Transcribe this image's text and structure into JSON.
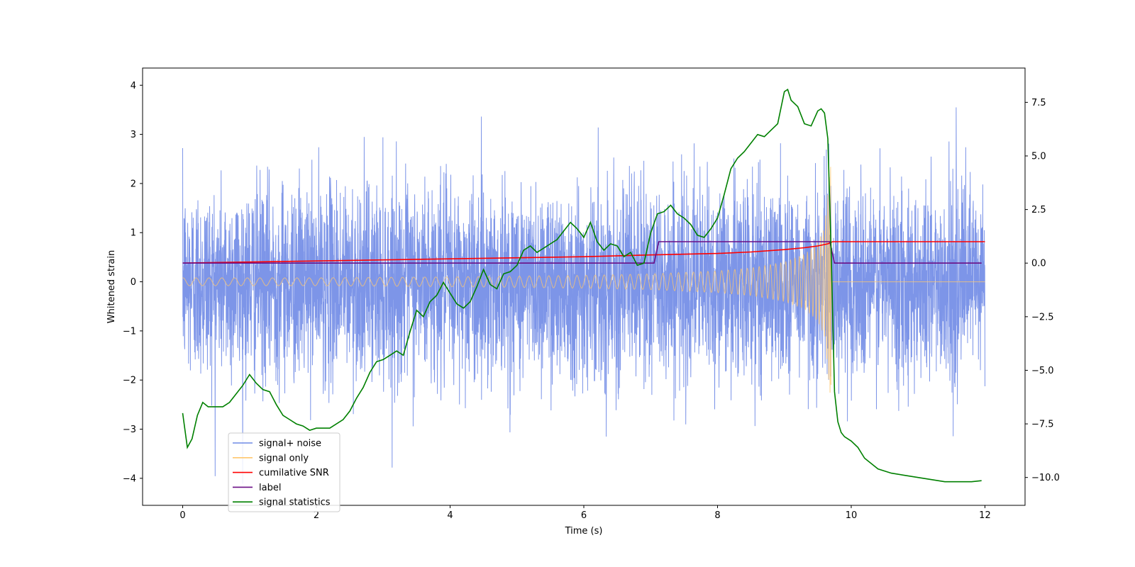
{
  "chart_data": {
    "type": "line",
    "xlabel": "Time (s)",
    "ylabel": "Whitened strain",
    "ylabel_right": "",
    "xlim": [
      -0.6,
      12.6
    ],
    "ylim_left": [
      -4.55,
      4.35
    ],
    "ylim_right": [
      -11.3,
      9.1
    ],
    "x_ticks": [
      0,
      2,
      4,
      6,
      8,
      10,
      12
    ],
    "x_tick_labels": [
      "0",
      "2",
      "4",
      "6",
      "8",
      "10",
      "12"
    ],
    "y_ticks_left": [
      -4,
      -3,
      -2,
      -1,
      0,
      1,
      2,
      3,
      4
    ],
    "y_tick_labels_left": [
      "−4",
      "−3",
      "−2",
      "−1",
      "0",
      "1",
      "2",
      "3",
      "4"
    ],
    "y_ticks_right": [
      -10,
      -7.5,
      -5,
      -2.5,
      0,
      2.5,
      5,
      7.5
    ],
    "y_tick_labels_right": [
      "−10.0",
      "−7.5",
      "−5.0",
      "−2.5",
      "0.0",
      "2.5",
      "5.0",
      "7.5"
    ],
    "legend_position": "lower-left",
    "grid": false,
    "series": [
      {
        "name": "signal+ noise",
        "axis": "left",
        "color": "#6f8ae6",
        "approximate": "dense noise, std ~1.0, range about -4.1 to 3.9, x from 0 to 12"
      },
      {
        "name": "signal only",
        "axis": "left",
        "color": "#ffc76e",
        "envelope": {
          "x": [
            0,
            2,
            4,
            6,
            7,
            8,
            8.5,
            9,
            9.3,
            9.5,
            9.6,
            9.65,
            9.7
          ],
          "amp": [
            0.08,
            0.08,
            0.1,
            0.13,
            0.16,
            0.22,
            0.28,
            0.4,
            0.55,
            0.8,
            1.1,
            1.8,
            2.7
          ]
        },
        "after_merger_value": 0,
        "merger_time": 9.7
      },
      {
        "name": "cumilative SNR",
        "axis": "right",
        "color": "#ff0000",
        "x": [
          0,
          2,
          4,
          6,
          7,
          8,
          8.5,
          9,
          9.3,
          9.5,
          9.65,
          9.72,
          12
        ],
        "y": [
          0.0,
          0.1,
          0.2,
          0.3,
          0.38,
          0.45,
          0.52,
          0.63,
          0.72,
          0.8,
          0.9,
          1.0,
          1.0
        ]
      },
      {
        "name": "label",
        "axis": "right",
        "color": "#6a0f86",
        "x": [
          0,
          7.05,
          7.12,
          9.68,
          9.75,
          11.95
        ],
        "y": [
          0,
          0,
          1,
          1,
          0,
          0
        ]
      },
      {
        "name": "signal statistics",
        "axis": "right",
        "color": "#008000",
        "x": [
          0,
          0.07,
          0.14,
          0.22,
          0.3,
          0.38,
          0.46,
          0.6,
          0.7,
          0.8,
          0.9,
          1.0,
          1.1,
          1.2,
          1.3,
          1.4,
          1.5,
          1.6,
          1.7,
          1.8,
          1.9,
          2.0,
          2.2,
          2.4,
          2.5,
          2.6,
          2.7,
          2.8,
          2.9,
          3.0,
          3.1,
          3.2,
          3.3,
          3.4,
          3.5,
          3.6,
          3.7,
          3.8,
          3.9,
          4.0,
          4.1,
          4.2,
          4.3,
          4.4,
          4.5,
          4.6,
          4.7,
          4.8,
          4.9,
          5.0,
          5.1,
          5.2,
          5.3,
          5.4,
          5.5,
          5.6,
          5.7,
          5.8,
          5.9,
          6.0,
          6.1,
          6.2,
          6.3,
          6.4,
          6.5,
          6.6,
          6.7,
          6.8,
          6.9,
          7.0,
          7.1,
          7.2,
          7.3,
          7.4,
          7.5,
          7.6,
          7.7,
          7.8,
          7.9,
          8.0,
          8.1,
          8.2,
          8.3,
          8.4,
          8.5,
          8.6,
          8.7,
          8.8,
          8.9,
          9.0,
          9.05,
          9.1,
          9.2,
          9.3,
          9.4,
          9.5,
          9.55,
          9.6,
          9.65,
          9.7,
          9.75,
          9.8,
          9.85,
          9.9,
          10.0,
          10.1,
          10.2,
          10.4,
          10.6,
          10.8,
          11.0,
          11.2,
          11.4,
          11.6,
          11.8,
          11.95
        ],
        "y": [
          -7.0,
          -8.6,
          -8.2,
          -7.1,
          -6.5,
          -6.7,
          -6.7,
          -6.7,
          -6.5,
          -6.1,
          -5.7,
          -5.2,
          -5.6,
          -5.9,
          -6.0,
          -6.6,
          -7.1,
          -7.3,
          -7.5,
          -7.6,
          -7.8,
          -7.7,
          -7.7,
          -7.3,
          -6.9,
          -6.3,
          -5.8,
          -5.1,
          -4.6,
          -4.5,
          -4.3,
          -4.1,
          -4.3,
          -3.2,
          -2.2,
          -2.5,
          -1.8,
          -1.5,
          -0.9,
          -1.4,
          -1.9,
          -2.1,
          -1.8,
          -1.1,
          -0.3,
          -1.0,
          -1.2,
          -0.5,
          -0.4,
          -0.1,
          0.6,
          0.8,
          0.5,
          0.7,
          0.9,
          1.1,
          1.5,
          1.9,
          1.6,
          1.2,
          1.9,
          1.0,
          0.6,
          0.9,
          0.8,
          0.3,
          0.5,
          -0.1,
          0.0,
          1.4,
          2.3,
          2.4,
          2.7,
          2.3,
          2.1,
          1.8,
          1.3,
          1.2,
          1.6,
          2.1,
          3.2,
          4.4,
          4.9,
          5.2,
          5.6,
          6.0,
          5.9,
          6.2,
          6.5,
          8.0,
          8.1,
          7.6,
          7.3,
          6.5,
          6.4,
          7.1,
          7.2,
          7.0,
          5.8,
          0.5,
          -6.0,
          -7.4,
          -7.9,
          -8.1,
          -8.3,
          -8.6,
          -9.1,
          -9.6,
          -9.8,
          -9.9,
          -10.0,
          -10.1,
          -10.2,
          -10.2,
          -10.2,
          -10.15
        ]
      }
    ]
  }
}
